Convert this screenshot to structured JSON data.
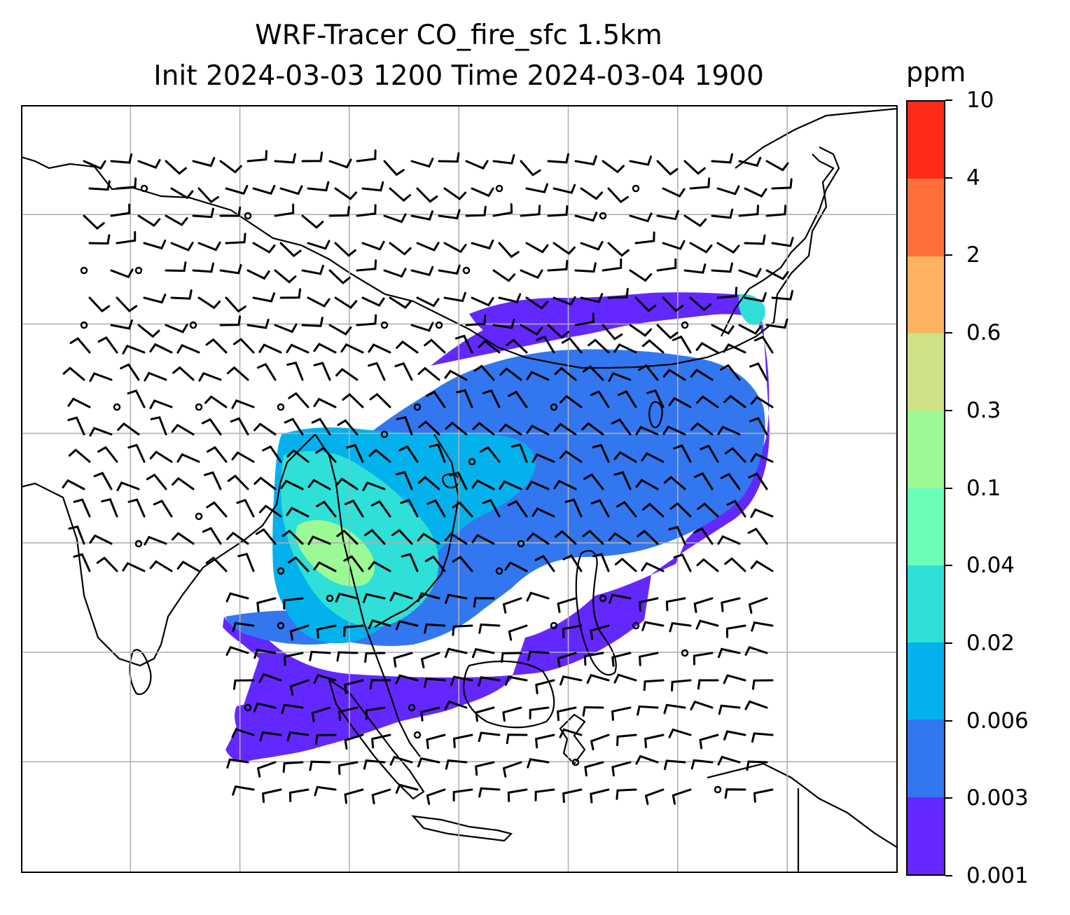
{
  "title": {
    "line1": "WRF-Tracer CO_fire_sfc 1.5km",
    "line2": "Init 2024-03-03 1200 Time 2024-03-04 1900"
  },
  "colorbar": {
    "unit": "ppm",
    "levels": [
      "0.001",
      "0.003",
      "0.006",
      "0.02",
      "0.04",
      "0.1",
      "0.3",
      "0.6",
      "2",
      "4",
      "10"
    ],
    "colors": [
      "#6328ff",
      "#3277f0",
      "#03b1ec",
      "#2ee0d8",
      "#6affb8",
      "#9bfa96",
      "#cfe186",
      "#ffb260",
      "#ff6f3a",
      "#ff2a18"
    ]
  },
  "map": {
    "fields": [
      "CO_fire_sfc concentration",
      "wind barbs"
    ],
    "gridlines": true,
    "features": [
      "coastlines",
      "country borders"
    ]
  }
}
